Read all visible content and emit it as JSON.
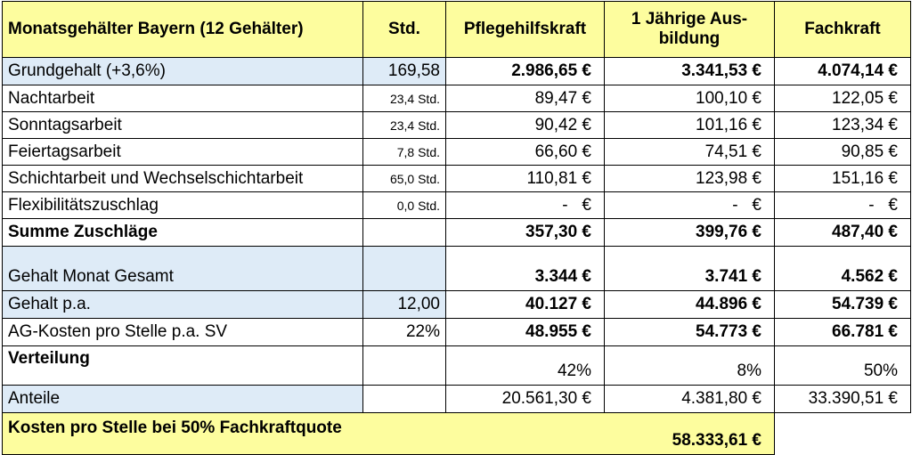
{
  "header": {
    "title": "Monatsgehälter Bayern (12 Gehälter)",
    "std": "Std.",
    "col1": "Pflegehilfskraft",
    "col2_line1": "1 Jährige Aus-",
    "col2_line2": "bildung",
    "col3": "Fachkraft"
  },
  "rows": {
    "grundgehalt": {
      "label": "Grundgehalt (+3,6%)",
      "std": "169,58",
      "v1": "2.986,65 €",
      "v2": "3.341,53 €",
      "v3": "4.074,14 €"
    },
    "nacht": {
      "label": "Nachtarbeit",
      "std": "23,4 Std.",
      "v1": "89,47 €",
      "v2": "100,10 €",
      "v3": "122,05 €"
    },
    "sonntag": {
      "label": "Sonntagsarbeit",
      "std": "23,4 Std.",
      "v1": "90,42 €",
      "v2": "101,16 €",
      "v3": "123,34 €"
    },
    "feiertag": {
      "label": "Feiertagsarbeit",
      "std": "7,8 Std.",
      "v1": "66,60 €",
      "v2": "74,51 €",
      "v3": "90,85 €"
    },
    "schicht": {
      "label": "Schichtarbeit und Wechselschichtarbeit",
      "std": "65,0 Std.",
      "v1": "110,81 €",
      "v2": "123,98 €",
      "v3": "151,16 €"
    },
    "flex": {
      "label": "Flexibilitätszuschlag",
      "std": "0,0 Std.",
      "v1": "-   €",
      "v2": "-   €",
      "v3": "-   €"
    },
    "summe": {
      "label": "Summe Zuschläge",
      "std": "",
      "v1": "357,30 €",
      "v2": "399,76 €",
      "v3": "487,40 €"
    },
    "gesamt": {
      "label": "Gehalt Monat Gesamt",
      "std": "",
      "v1": "3.344 €",
      "v2": "3.741 €",
      "v3": "4.562 €"
    },
    "pa": {
      "label": "Gehalt p.a.",
      "std": "12,00",
      "v1": "40.127 €",
      "v2": "44.896 €",
      "v3": "54.739 €"
    },
    "ag": {
      "label": "AG-Kosten pro Stelle p.a. SV",
      "std": "22%",
      "v1": "48.955 €",
      "v2": "54.773 €",
      "v3": "66.781 €"
    },
    "verteilung": {
      "label": "Verteilung",
      "std": "",
      "v1": "42%",
      "v2": "8%",
      "v3": "50%"
    },
    "anteile": {
      "label": "Anteile",
      "std": "",
      "v1": "20.561,30 €",
      "v2": "4.381,80 €",
      "v3": "33.390,51 €"
    }
  },
  "footer": {
    "label": "Kosten pro Stelle bei 50% Fachkraftquote",
    "value": "58.333,61 €"
  },
  "colors": {
    "header_bg": "#fdfd9e",
    "row_bg": "#deebf7"
  }
}
